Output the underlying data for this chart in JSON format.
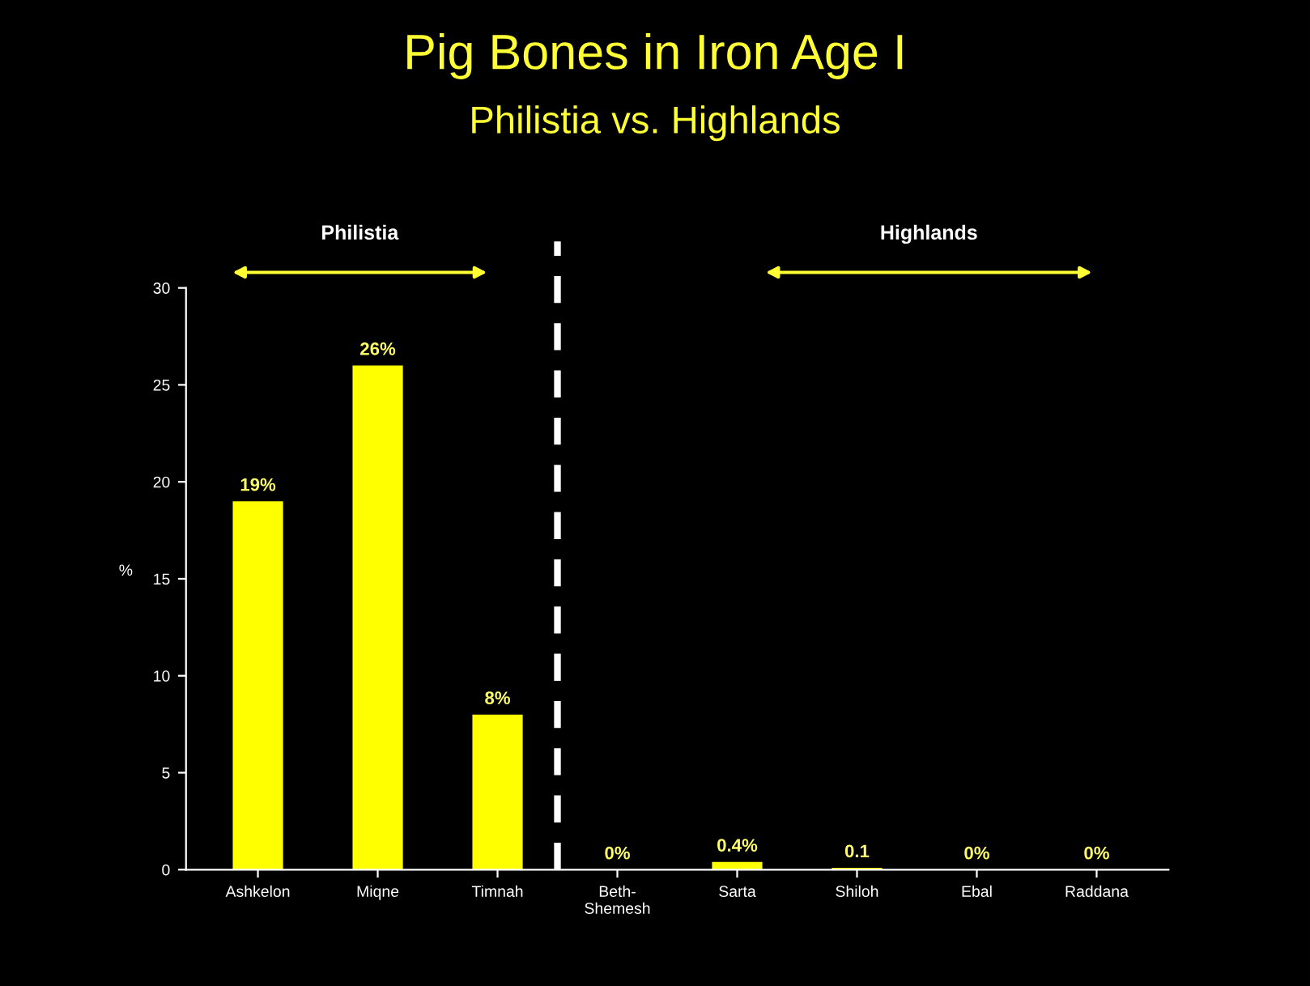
{
  "chart_data": {
    "type": "bar",
    "title": "Pig Bones in Iron Age I",
    "subtitle": "Philistia vs. Highlands",
    "ylabel": "%",
    "categories": [
      "Ashkelon",
      "Miqne",
      "Timnah",
      "Beth-\nShemesh",
      "Sarta",
      "Shiloh",
      "Ebal",
      "Raddana"
    ],
    "values": [
      19,
      26,
      8,
      0,
      0.4,
      0.1,
      0,
      0
    ],
    "color": "#ffff00",
    "value_labels": [
      "19%",
      "26%",
      "8%",
      "0%",
      "0.4%",
      "0.1",
      "0%",
      "0%"
    ],
    "ylim": [
      0,
      30
    ],
    "yticks": [
      0,
      5,
      10,
      15,
      20,
      25,
      30
    ],
    "grid": false,
    "annotations": [
      "Philistia",
      "Highlands"
    ]
  }
}
